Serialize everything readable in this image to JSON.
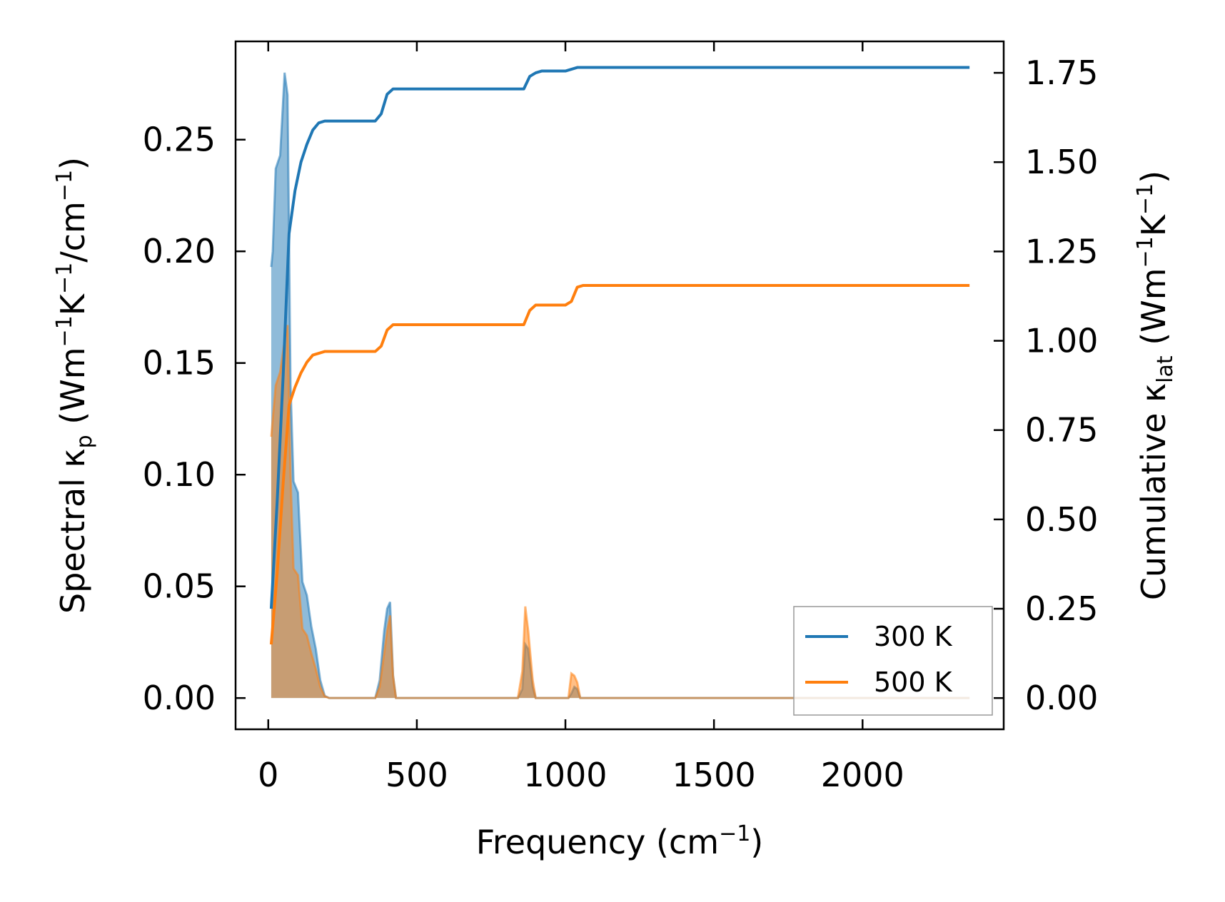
{
  "chart_data": {
    "type": "area",
    "x_axis": {
      "label": "Frequency (cm",
      "label_sup": "−1",
      "label_end": ")",
      "ticks": [
        "0",
        "500",
        "1000",
        "1500",
        "2000"
      ],
      "tick_values": [
        0,
        500,
        1000,
        1500,
        2000
      ],
      "range": [
        -110,
        2475
      ]
    },
    "y_left": {
      "label_parts": [
        "Spectral κ",
        "p",
        " (Wm",
        "−1",
        "K",
        "−1",
        "/cm",
        "−1",
        ")"
      ],
      "ticks": [
        "0.00",
        "0.05",
        "0.10",
        "0.15",
        "0.20",
        "0.25"
      ],
      "tick_values": [
        0,
        0.05,
        0.1,
        0.15,
        0.2,
        0.25
      ],
      "range": [
        -0.014,
        0.294
      ]
    },
    "y_right": {
      "label_parts": [
        "Cumulative κ",
        "lat",
        " (Wm",
        "−1",
        "K",
        "−1",
        ")"
      ],
      "ticks": [
        "0.00",
        "0.25",
        "0.50",
        "0.75",
        "1.00",
        "1.25",
        "1.50",
        "1.75"
      ],
      "tick_values": [
        0,
        0.25,
        0.5,
        0.75,
        1.0,
        1.25,
        1.5,
        1.75
      ],
      "range": [
        -0.0875,
        1.838
      ]
    },
    "legend": {
      "placement": "lower-right",
      "entries": [
        "300 K",
        "500 K"
      ]
    },
    "colors": {
      "300K": "#1f77b4",
      "500K": "#ff7f0e"
    },
    "series": [
      {
        "name": "300 K",
        "axis": "left",
        "kind": "spectral-fill",
        "x": [
          10,
          15,
          25,
          40,
          55,
          65,
          75,
          85,
          100,
          115,
          130,
          145,
          160,
          175,
          190,
          205,
          360,
          375,
          390,
          400,
          410,
          420,
          430,
          840,
          855,
          865,
          875,
          890,
          900,
          1010,
          1020,
          1030,
          1040,
          1050,
          2360
        ],
        "y": [
          0.193,
          0.2,
          0.237,
          0.243,
          0.28,
          0.27,
          0.14,
          0.097,
          0.092,
          0.052,
          0.046,
          0.032,
          0.022,
          0.008,
          0.001,
          0.0,
          0.0,
          0.008,
          0.03,
          0.04,
          0.043,
          0.01,
          0.0,
          0.0,
          0.004,
          0.024,
          0.022,
          0.005,
          0.0,
          0.0,
          0.002,
          0.005,
          0.004,
          0.0,
          0.0
        ]
      },
      {
        "name": "500 K",
        "axis": "left",
        "kind": "spectral-fill",
        "x": [
          10,
          15,
          25,
          40,
          55,
          65,
          75,
          85,
          100,
          115,
          130,
          145,
          160,
          175,
          190,
          205,
          360,
          375,
          390,
          400,
          410,
          420,
          430,
          840,
          855,
          865,
          875,
          890,
          900,
          1010,
          1020,
          1030,
          1040,
          1050,
          2360
        ],
        "y": [
          0.117,
          0.125,
          0.14,
          0.146,
          0.16,
          0.167,
          0.1,
          0.058,
          0.055,
          0.031,
          0.028,
          0.02,
          0.013,
          0.005,
          0.0008,
          0.0,
          0.0,
          0.005,
          0.02,
          0.03,
          0.037,
          0.01,
          0.0,
          0.0,
          0.012,
          0.041,
          0.03,
          0.008,
          0.0,
          0.0,
          0.011,
          0.01,
          0.007,
          0.0,
          0.0
        ]
      },
      {
        "name": "300 K",
        "axis": "right",
        "kind": "cumulative",
        "x": [
          10,
          30,
          50,
          70,
          90,
          110,
          130,
          150,
          170,
          190,
          210,
          360,
          380,
          400,
          420,
          440,
          840,
          860,
          880,
          900,
          920,
          1000,
          1020,
          1040,
          1060,
          2360
        ],
        "y": [
          0.25,
          0.55,
          0.9,
          1.3,
          1.42,
          1.5,
          1.55,
          1.59,
          1.61,
          1.615,
          1.615,
          1.615,
          1.635,
          1.69,
          1.705,
          1.705,
          1.705,
          1.705,
          1.74,
          1.75,
          1.755,
          1.755,
          1.76,
          1.765,
          1.765,
          1.765
        ]
      },
      {
        "name": "500 K",
        "axis": "right",
        "kind": "cumulative",
        "x": [
          10,
          30,
          50,
          70,
          90,
          110,
          130,
          150,
          170,
          190,
          210,
          360,
          380,
          400,
          420,
          440,
          840,
          860,
          880,
          900,
          920,
          1000,
          1020,
          1040,
          1060,
          2360
        ],
        "y": [
          0.15,
          0.35,
          0.6,
          0.82,
          0.87,
          0.91,
          0.94,
          0.96,
          0.965,
          0.97,
          0.97,
          0.97,
          0.985,
          1.03,
          1.045,
          1.045,
          1.045,
          1.045,
          1.085,
          1.1,
          1.1,
          1.1,
          1.11,
          1.15,
          1.155,
          1.155
        ]
      }
    ]
  }
}
